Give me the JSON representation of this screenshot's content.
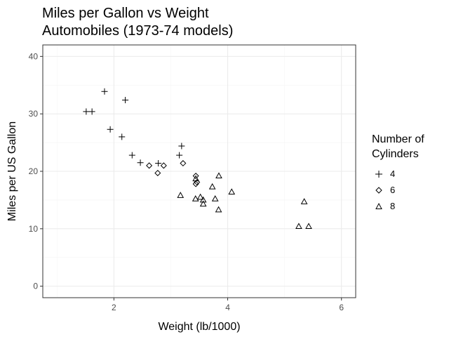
{
  "colors": {
    "background": "#ffffff",
    "panel_border": "#333333",
    "grid_major": "#ebebeb",
    "grid_minor": "#f5f5f5",
    "points": "#000000",
    "tick_text": "#4d4d4d"
  },
  "chart_data": {
    "type": "scatter",
    "title": "Miles per Gallon vs Weight",
    "subtitle": "Automobiles (1973-74 models)",
    "xlabel": "Weight (lb/1000)",
    "ylabel": "Miles per US Gallon",
    "xlim": [
      0.75,
      6.25
    ],
    "ylim": [
      -2,
      42
    ],
    "xticks": [
      2,
      4,
      6
    ],
    "yticks": [
      0,
      10,
      20,
      30,
      40
    ],
    "grid": true,
    "legend": {
      "title_lines": [
        "Number of",
        "Cylinders"
      ],
      "position": "right",
      "entries": [
        {
          "label": "4",
          "shape": "plus"
        },
        {
          "label": "6",
          "shape": "diamond"
        },
        {
          "label": "8",
          "shape": "triangle"
        }
      ]
    },
    "series": [
      {
        "name": "4",
        "shape": "plus",
        "points": [
          {
            "x": 2.32,
            "y": 22.8
          },
          {
            "x": 3.19,
            "y": 24.4
          },
          {
            "x": 3.15,
            "y": 22.8
          },
          {
            "x": 2.2,
            "y": 32.4
          },
          {
            "x": 1.615,
            "y": 30.4
          },
          {
            "x": 1.835,
            "y": 33.9
          },
          {
            "x": 2.465,
            "y": 21.5
          },
          {
            "x": 1.935,
            "y": 27.3
          },
          {
            "x": 2.14,
            "y": 26.0
          },
          {
            "x": 1.513,
            "y": 30.4
          },
          {
            "x": 2.78,
            "y": 21.4
          }
        ]
      },
      {
        "name": "6",
        "shape": "diamond",
        "points": [
          {
            "x": 2.62,
            "y": 21.0
          },
          {
            "x": 2.875,
            "y": 21.0
          },
          {
            "x": 3.215,
            "y": 21.4
          },
          {
            "x": 3.46,
            "y": 18.1
          },
          {
            "x": 3.44,
            "y": 19.2
          },
          {
            "x": 3.44,
            "y": 17.8
          },
          {
            "x": 2.77,
            "y": 19.7
          }
        ]
      },
      {
        "name": "8",
        "shape": "triangle",
        "points": [
          {
            "x": 3.44,
            "y": 18.7
          },
          {
            "x": 3.57,
            "y": 14.3
          },
          {
            "x": 4.07,
            "y": 16.4
          },
          {
            "x": 3.73,
            "y": 17.3
          },
          {
            "x": 3.78,
            "y": 15.2
          },
          {
            "x": 5.25,
            "y": 10.4
          },
          {
            "x": 5.424,
            "y": 10.4
          },
          {
            "x": 5.345,
            "y": 14.7
          },
          {
            "x": 3.52,
            "y": 15.5
          },
          {
            "x": 3.435,
            "y": 15.2
          },
          {
            "x": 3.84,
            "y": 13.3
          },
          {
            "x": 3.845,
            "y": 19.2
          },
          {
            "x": 3.17,
            "y": 15.8
          },
          {
            "x": 3.57,
            "y": 15.0
          }
        ]
      }
    ]
  }
}
